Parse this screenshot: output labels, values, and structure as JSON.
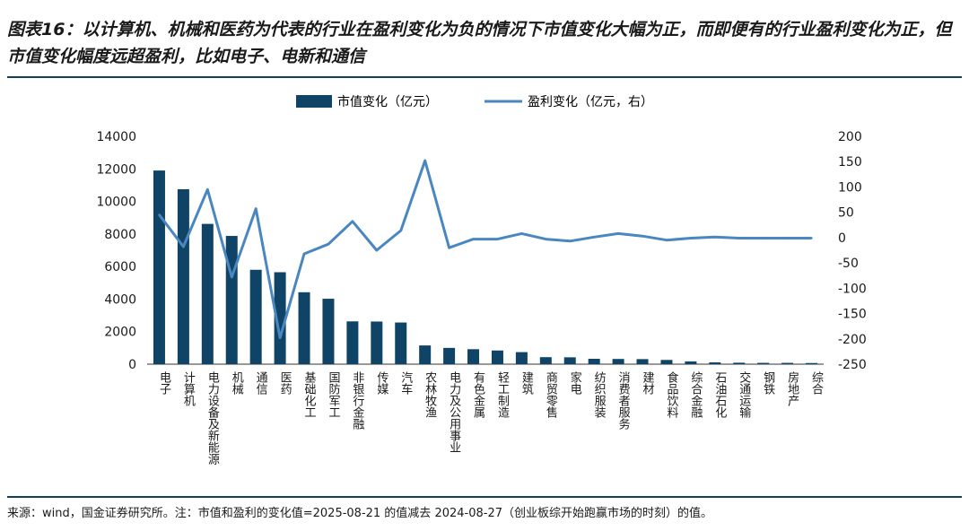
{
  "header": {
    "title": "图表16：以计算机、机械和医药为代表的行业在盈利变化为负的情况下市值变化大幅为正，而即便有的行业盈利变化为正，但市值变化幅度远超盈利，比如电子、电新和通信"
  },
  "footer": {
    "source": "来源：wind，国金证券研究所。注：市值和盈利的变化值=2025-08-21 的值减去 2024-08-27（创业板综开始跑赢市场的时刻）的值。"
  },
  "colors": {
    "bar": "#0f4466",
    "line": "#4a86bf",
    "rule": "#123f60"
  },
  "chart_data": {
    "type": "bar",
    "title": "",
    "xlabel": "",
    "ylabel": "",
    "categories": [
      "电子",
      "计算机",
      "电力设备及新能源",
      "机械",
      "通信",
      "医药",
      "基础化工",
      "国防军工",
      "非银行金融",
      "传媒",
      "汽车",
      "农林牧渔",
      "电力及公用事业",
      "有色金属",
      "轻工制造",
      "建筑",
      "商贸零售",
      "家电",
      "纺织服装",
      "消费者服务",
      "建材",
      "食品饮料",
      "综合金融",
      "石油石化",
      "交通运输",
      "钢铁",
      "房地产",
      "综合"
    ],
    "series": [
      {
        "name": "市值变化（亿元）",
        "type": "bar",
        "axis": "left",
        "values": [
          11900,
          10750,
          8620,
          7880,
          5800,
          5650,
          4420,
          4020,
          2630,
          2620,
          2560,
          1150,
          1000,
          920,
          840,
          740,
          430,
          420,
          330,
          320,
          310,
          260,
          170,
          110,
          90,
          80,
          80,
          70
        ]
      },
      {
        "name": "盈利变化（亿元，右）",
        "type": "line",
        "axis": "right",
        "values": [
          45,
          -18,
          95,
          -78,
          57,
          -198,
          -32,
          -13,
          32,
          -25,
          14,
          152,
          -20,
          -3,
          -3,
          8,
          -3,
          -7,
          1,
          8,
          3,
          -5,
          -1,
          1,
          -1,
          -1,
          -1,
          -1
        ]
      }
    ],
    "y_left": {
      "min": 0,
      "max": 14000,
      "ticks": [
        0,
        2000,
        4000,
        6000,
        8000,
        10000,
        12000,
        14000
      ]
    },
    "y_right": {
      "min": -250,
      "max": 200,
      "ticks": [
        -250,
        -200,
        -150,
        -100,
        -50,
        0,
        50,
        100,
        150,
        200
      ]
    },
    "legend": "top-center",
    "grid": false
  }
}
